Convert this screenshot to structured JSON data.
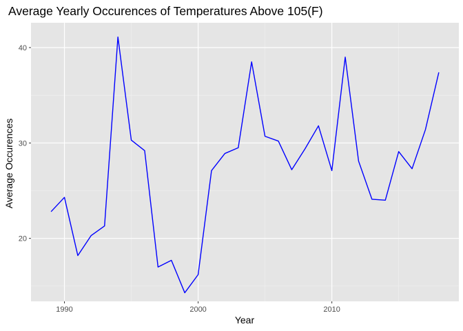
{
  "chart_data": {
    "type": "line",
    "title": "Average Yearly Occurences of Temperatures Above 105(F)",
    "xlabel": "Year",
    "ylabel": "Average Occurences",
    "xlim": [
      1987.5,
      2019.5
    ],
    "ylim": [
      13.4,
      42.6
    ],
    "x_ticks": [
      1990,
      2000,
      2010
    ],
    "x_minor": [
      1995,
      2005,
      2015
    ],
    "y_ticks": [
      20,
      30,
      40
    ],
    "y_minor": [
      15,
      25,
      35
    ],
    "grid": true,
    "background": "#e5e5e5",
    "line_color": "#0000ff",
    "series": [
      {
        "x": [
          1989,
          1990,
          1991,
          1992,
          1993,
          1994,
          1995,
          1996,
          1997,
          1998,
          1999,
          2000,
          2001,
          2002,
          2003,
          2004,
          2005,
          2006,
          2007,
          2008,
          2009,
          2010,
          2011,
          2012,
          2013,
          2014,
          2015,
          2016,
          2017,
          2018
        ],
        "values": [
          22.8,
          24.3,
          18.2,
          20.3,
          21.3,
          41.1,
          30.3,
          29.2,
          17.0,
          17.7,
          14.3,
          16.2,
          27.1,
          28.9,
          29.5,
          38.5,
          30.7,
          30.2,
          27.2,
          29.4,
          31.8,
          27.1,
          39.0,
          28.1,
          24.1,
          24.0,
          29.1,
          27.3,
          31.4,
          37.4
        ]
      }
    ]
  }
}
